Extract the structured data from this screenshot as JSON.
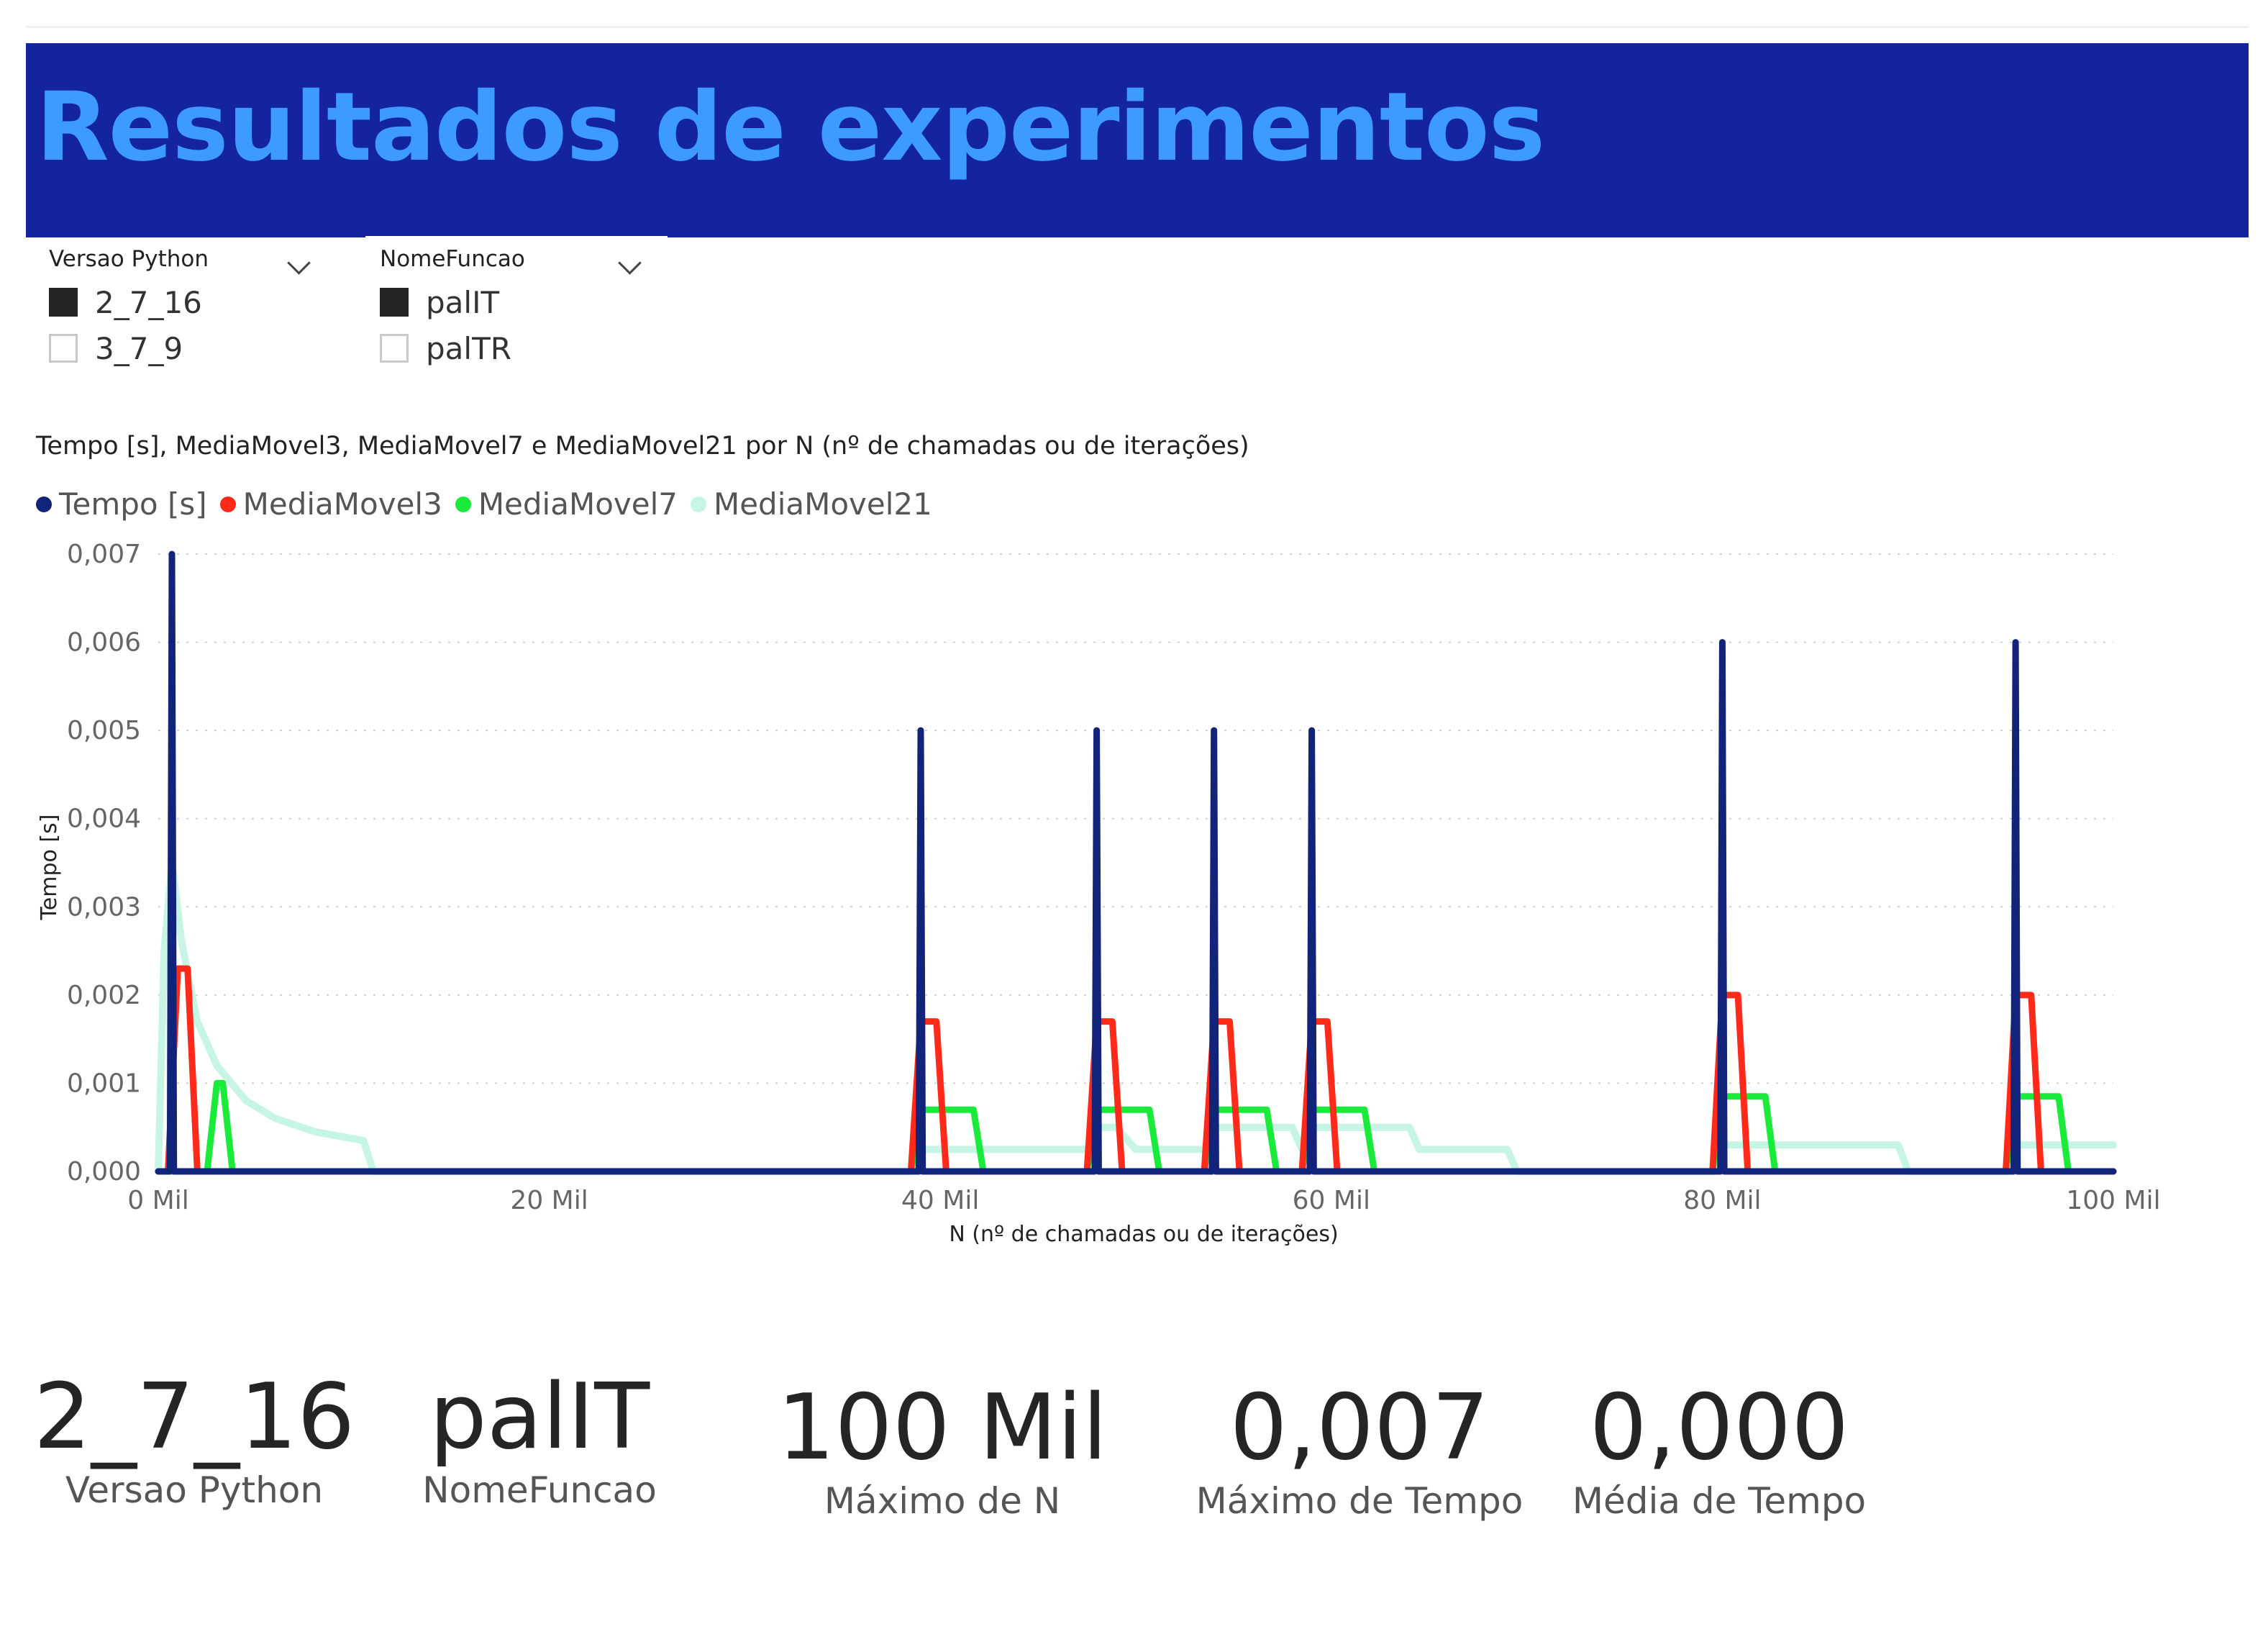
{
  "header": {
    "title": "Resultados de experimentos"
  },
  "slicers": [
    {
      "title": "Versao Python",
      "options": [
        {
          "label": "2_7_16",
          "checked": true
        },
        {
          "label": "3_7_9",
          "checked": false
        }
      ]
    },
    {
      "title": "NomeFuncao",
      "options": [
        {
          "label": "palIT",
          "checked": true
        },
        {
          "label": "palTR",
          "checked": false
        }
      ]
    }
  ],
  "chart_data": {
    "type": "line",
    "title": "Tempo [s], MediaMovel3, MediaMovel7 e MediaMovel21 por N (nº de chamadas ou de iterações)",
    "xlabel": "N (nº de chamadas ou de iterações)",
    "ylabel": "Tempo [s]",
    "xlim": [
      0,
      100000
    ],
    "ylim": [
      0,
      0.007
    ],
    "x_ticks": [
      {
        "value": 0,
        "label": "0 Mil"
      },
      {
        "value": 20000,
        "label": "20 Mil"
      },
      {
        "value": 40000,
        "label": "40 Mil"
      },
      {
        "value": 60000,
        "label": "60 Mil"
      },
      {
        "value": 80000,
        "label": "80 Mil"
      },
      {
        "value": 100000,
        "label": "100 Mil"
      }
    ],
    "y_ticks": [
      {
        "value": 0,
        "label": "0,000"
      },
      {
        "value": 0.001,
        "label": "0,001"
      },
      {
        "value": 0.002,
        "label": "0,002"
      },
      {
        "value": 0.003,
        "label": "0,003"
      },
      {
        "value": 0.004,
        "label": "0,004"
      },
      {
        "value": 0.005,
        "label": "0,005"
      },
      {
        "value": 0.006,
        "label": "0,006"
      },
      {
        "value": 0.007,
        "label": "0,007"
      }
    ],
    "grid": true,
    "legend_position": "top-left",
    "series": [
      {
        "name": "Tempo [s]",
        "color": "#12237a",
        "points": [
          [
            0,
            0
          ],
          [
            600,
            0
          ],
          [
            700,
            0.007
          ],
          [
            800,
            0
          ],
          [
            38900,
            0
          ],
          [
            39000,
            0.005
          ],
          [
            39100,
            0
          ],
          [
            47900,
            0
          ],
          [
            48000,
            0.005
          ],
          [
            48100,
            0
          ],
          [
            53900,
            0
          ],
          [
            54000,
            0.005
          ],
          [
            54100,
            0
          ],
          [
            58900,
            0
          ],
          [
            59000,
            0.005
          ],
          [
            59100,
            0
          ],
          [
            79900,
            0
          ],
          [
            80000,
            0.006
          ],
          [
            80100,
            0
          ],
          [
            94900,
            0
          ],
          [
            95000,
            0.006
          ],
          [
            95100,
            0
          ],
          [
            100000,
            0
          ]
        ]
      },
      {
        "name": "MediaMovel3",
        "color": "#ff2a1a",
        "points": [
          [
            0,
            0
          ],
          [
            500,
            0
          ],
          [
            1000,
            0.0023
          ],
          [
            1500,
            0.0023
          ],
          [
            2000,
            0
          ],
          [
            38500,
            0
          ],
          [
            39000,
            0.0017
          ],
          [
            39800,
            0.0017
          ],
          [
            40300,
            0
          ],
          [
            47500,
            0
          ],
          [
            48000,
            0.0017
          ],
          [
            48800,
            0.0017
          ],
          [
            49300,
            0
          ],
          [
            53500,
            0
          ],
          [
            54000,
            0.0017
          ],
          [
            54800,
            0.0017
          ],
          [
            55300,
            0
          ],
          [
            58500,
            0
          ],
          [
            59000,
            0.0017
          ],
          [
            59800,
            0.0017
          ],
          [
            60300,
            0
          ],
          [
            79500,
            0
          ],
          [
            80000,
            0.002
          ],
          [
            80800,
            0.002
          ],
          [
            81300,
            0
          ],
          [
            94500,
            0
          ],
          [
            95000,
            0.002
          ],
          [
            95800,
            0.002
          ],
          [
            96300,
            0
          ],
          [
            100000,
            0
          ]
        ]
      },
      {
        "name": "MediaMovel7",
        "color": "#1aeb3a",
        "points": [
          [
            0,
            0
          ],
          [
            2500,
            0
          ],
          [
            3000,
            0.001
          ],
          [
            3300,
            0.001
          ],
          [
            3800,
            0
          ],
          [
            38500,
            0
          ],
          [
            39000,
            0.0007
          ],
          [
            41700,
            0.0007
          ],
          [
            42200,
            0
          ],
          [
            47500,
            0
          ],
          [
            48000,
            0.0007
          ],
          [
            50700,
            0.0007
          ],
          [
            51200,
            0
          ],
          [
            53500,
            0
          ],
          [
            54000,
            0.0007
          ],
          [
            56700,
            0.0007
          ],
          [
            57200,
            0
          ],
          [
            58500,
            0
          ],
          [
            59000,
            0.0007
          ],
          [
            61700,
            0.0007
          ],
          [
            62200,
            0
          ],
          [
            69500,
            0
          ],
          [
            79500,
            0
          ],
          [
            80000,
            0.00085
          ],
          [
            82200,
            0.00085
          ],
          [
            82700,
            0
          ],
          [
            94500,
            0
          ],
          [
            95000,
            0.00085
          ],
          [
            97200,
            0.00085
          ],
          [
            97700,
            0
          ],
          [
            100000,
            0
          ]
        ]
      },
      {
        "name": "MediaMovel21",
        "color": "#c6f5e5",
        "points": [
          [
            0,
            0
          ],
          [
            300,
            0.0025
          ],
          [
            700,
            0.0035
          ],
          [
            1200,
            0.0026
          ],
          [
            2000,
            0.0017
          ],
          [
            3000,
            0.0012
          ],
          [
            4500,
            0.0008
          ],
          [
            6000,
            0.0006
          ],
          [
            8000,
            0.00045
          ],
          [
            10500,
            0.00035
          ],
          [
            11000,
            0
          ],
          [
            38500,
            0
          ],
          [
            39000,
            0.00025
          ],
          [
            47500,
            0.00025
          ],
          [
            48000,
            0.0005
          ],
          [
            49000,
            0.0005
          ],
          [
            50000,
            0.00025
          ],
          [
            53500,
            0.00025
          ],
          [
            54000,
            0.0005
          ],
          [
            58000,
            0.0005
          ],
          [
            58500,
            0.00025
          ],
          [
            59000,
            0.0005
          ],
          [
            64000,
            0.0005
          ],
          [
            64500,
            0.00025
          ],
          [
            69000,
            0.00025
          ],
          [
            69500,
            0
          ],
          [
            79500,
            0
          ],
          [
            80000,
            0.0003
          ],
          [
            89000,
            0.0003
          ],
          [
            89500,
            0
          ],
          [
            94500,
            0
          ],
          [
            95000,
            0.0003
          ],
          [
            100000,
            0.0003
          ]
        ]
      }
    ]
  },
  "cards": [
    {
      "value": "2_7_16",
      "label": "Versao Python"
    },
    {
      "value": "palIT",
      "label": "NomeFuncao"
    },
    {
      "value": "100 Mil",
      "label": "Máximo de N"
    },
    {
      "value": "0,007",
      "label": "Máximo de Tempo"
    },
    {
      "value": "0,000",
      "label": "Média de Tempo"
    }
  ]
}
